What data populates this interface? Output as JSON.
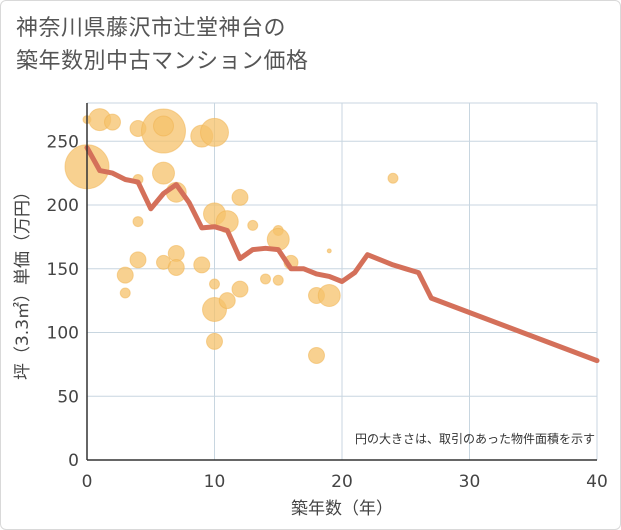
{
  "title_lines": [
    "神奈川県藤沢市辻堂神台の",
    "築年数別中古マンション価格"
  ],
  "chart_data": {
    "type": "scatter",
    "title": "神奈川県藤沢市辻堂神台の築年数別中古マンション価格",
    "xlabel": "築年数（年）",
    "ylabel": "坪（3.3㎡）単価（万円）",
    "xlim": [
      0,
      40
    ],
    "ylim": [
      0,
      280
    ],
    "xticks": [
      0,
      10,
      20,
      30,
      40
    ],
    "yticks": [
      0,
      50,
      100,
      150,
      200,
      250
    ],
    "grid": true,
    "note": "円の大きさは、取引のあった物件面積を示す",
    "colors": {
      "bubble": "#f5c26b",
      "line": "#d4705a",
      "grid": "#c8d6e0"
    },
    "points": [
      {
        "x": 0,
        "y": 230,
        "s": 22
      },
      {
        "x": 0,
        "y": 267,
        "s": 4
      },
      {
        "x": 1,
        "y": 267,
        "s": 11
      },
      {
        "x": 2,
        "y": 265,
        "s": 8
      },
      {
        "x": 3,
        "y": 145,
        "s": 8
      },
      {
        "x": 3,
        "y": 131,
        "s": 5
      },
      {
        "x": 4,
        "y": 260,
        "s": 8
      },
      {
        "x": 4,
        "y": 220,
        "s": 5
      },
      {
        "x": 4,
        "y": 187,
        "s": 5
      },
      {
        "x": 4,
        "y": 157,
        "s": 8
      },
      {
        "x": 6,
        "y": 258,
        "s": 22
      },
      {
        "x": 6,
        "y": 262,
        "s": 10
      },
      {
        "x": 6,
        "y": 225,
        "s": 11
      },
      {
        "x": 6,
        "y": 155,
        "s": 7
      },
      {
        "x": 7,
        "y": 210,
        "s": 10
      },
      {
        "x": 7,
        "y": 162,
        "s": 8
      },
      {
        "x": 7,
        "y": 151,
        "s": 8
      },
      {
        "x": 9,
        "y": 254,
        "s": 11
      },
      {
        "x": 9,
        "y": 153,
        "s": 8
      },
      {
        "x": 10,
        "y": 257,
        "s": 14
      },
      {
        "x": 10,
        "y": 193,
        "s": 11
      },
      {
        "x": 10,
        "y": 138,
        "s": 5
      },
      {
        "x": 10,
        "y": 118,
        "s": 12
      },
      {
        "x": 10,
        "y": 93,
        "s": 8
      },
      {
        "x": 11,
        "y": 187,
        "s": 11
      },
      {
        "x": 11,
        "y": 125,
        "s": 8
      },
      {
        "x": 12,
        "y": 206,
        "s": 8
      },
      {
        "x": 12,
        "y": 134,
        "s": 8
      },
      {
        "x": 13,
        "y": 184,
        "s": 5
      },
      {
        "x": 14,
        "y": 142,
        "s": 5
      },
      {
        "x": 15,
        "y": 180,
        "s": 5
      },
      {
        "x": 15,
        "y": 173,
        "s": 11
      },
      {
        "x": 15,
        "y": 141,
        "s": 5
      },
      {
        "x": 16,
        "y": 155,
        "s": 7
      },
      {
        "x": 18,
        "y": 129,
        "s": 8
      },
      {
        "x": 18,
        "y": 82,
        "s": 8
      },
      {
        "x": 19,
        "y": 129,
        "s": 11
      },
      {
        "x": 19,
        "y": 164,
        "s": 2
      },
      {
        "x": 24,
        "y": 221,
        "s": 5
      }
    ],
    "series": [
      {
        "type": "line",
        "x": [
          0,
          1,
          2,
          3,
          4,
          5,
          6,
          7,
          8,
          9,
          10,
          11,
          12,
          13,
          14,
          15,
          16,
          17,
          18,
          19,
          20,
          21,
          22,
          23,
          24,
          25,
          26,
          27,
          40
        ],
        "y": [
          245,
          227,
          225,
          220,
          218,
          197,
          209,
          216,
          202,
          182,
          183,
          180,
          158,
          165,
          166,
          165,
          150,
          150,
          146,
          144,
          140,
          147,
          161,
          157,
          153,
          150,
          147,
          127,
          78
        ]
      }
    ]
  }
}
